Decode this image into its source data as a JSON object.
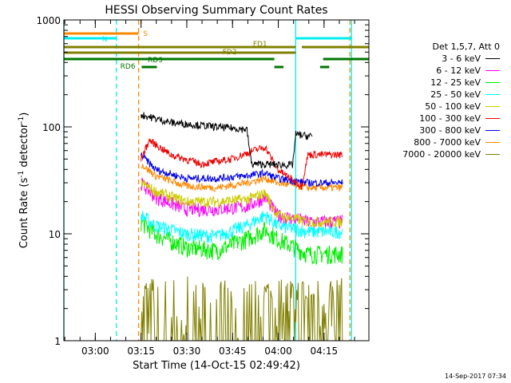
{
  "chart_data": {
    "type": "line",
    "title": "HESSI Observing Summary Count Rates",
    "xlabel": "Start Time (14-Oct-15 02:49:42)",
    "ylabel_text": "Count Rate (s",
    "ylabel_sup1": "-1",
    "ylabel_mid": " detector",
    "ylabel_sup2": "-1",
    "ylabel_end": ")",
    "ylim": [
      1,
      1000
    ],
    "yscale": "log",
    "xlim_minutes": [
      0,
      100
    ],
    "x_ticks": [
      {
        "label": "03:00",
        "minute": 10.3
      },
      {
        "label": "03:15",
        "minute": 25.3
      },
      {
        "label": "03:30",
        "minute": 40.3
      },
      {
        "label": "03:45",
        "minute": 55.3
      },
      {
        "label": "04:00",
        "minute": 70.3
      },
      {
        "label": "04:15",
        "minute": 85.3
      }
    ],
    "y_ticks": [
      {
        "label": "1",
        "value": 1
      },
      {
        "label": "10",
        "value": 10
      },
      {
        "label": "100",
        "value": 100
      },
      {
        "label": "1000",
        "value": 1000
      }
    ],
    "legend_header": "Det 1,5,7, Att 0",
    "series": [
      {
        "name": "3 - 6 keV",
        "color": "#000000"
      },
      {
        "name": "6 - 12 keV",
        "color": "#ff00ff"
      },
      {
        "name": "12 - 25 keV",
        "color": "#00ee00"
      },
      {
        "name": "25 - 50 keV",
        "color": "#00ffff"
      },
      {
        "name": "50 - 100 keV",
        "color": "#cccc00"
      },
      {
        "name": "100 - 300 keV",
        "color": "#ee0000"
      },
      {
        "name": "300 - 800 keV",
        "color": "#0000ee"
      },
      {
        "name": "800 - 7000 keV",
        "color": "#ff8800"
      },
      {
        "name": "7000 - 20000 keV",
        "color": "#808000"
      }
    ],
    "flags": [
      {
        "label": "S",
        "color": "#ff8800"
      },
      {
        "label": "N",
        "color": "#00eeee"
      },
      {
        "label": "FD1",
        "color": "#808000"
      },
      {
        "label": "FD2",
        "color": "#808000"
      },
      {
        "label": "RD6",
        "color": "#007700"
      },
      {
        "label": "RD9",
        "color": "#007700"
      }
    ],
    "vertical_markers": [
      {
        "minute": 0.0,
        "color": "#00eeee",
        "style": "solid"
      },
      {
        "minute": 17.2,
        "color": "#00eeee",
        "style": "dashed"
      },
      {
        "minute": 24.5,
        "color": "#ff8800",
        "style": "dashed"
      },
      {
        "minute": 76.0,
        "color": "#00eeee",
        "style": "solid"
      },
      {
        "minute": 93.8,
        "color": "#ff8800",
        "style": "dashed"
      },
      {
        "minute": 94.3,
        "color": "#00eeee",
        "style": "solid"
      }
    ]
  },
  "footer": {
    "timestamp": "14-Sep-2017 07:34"
  }
}
